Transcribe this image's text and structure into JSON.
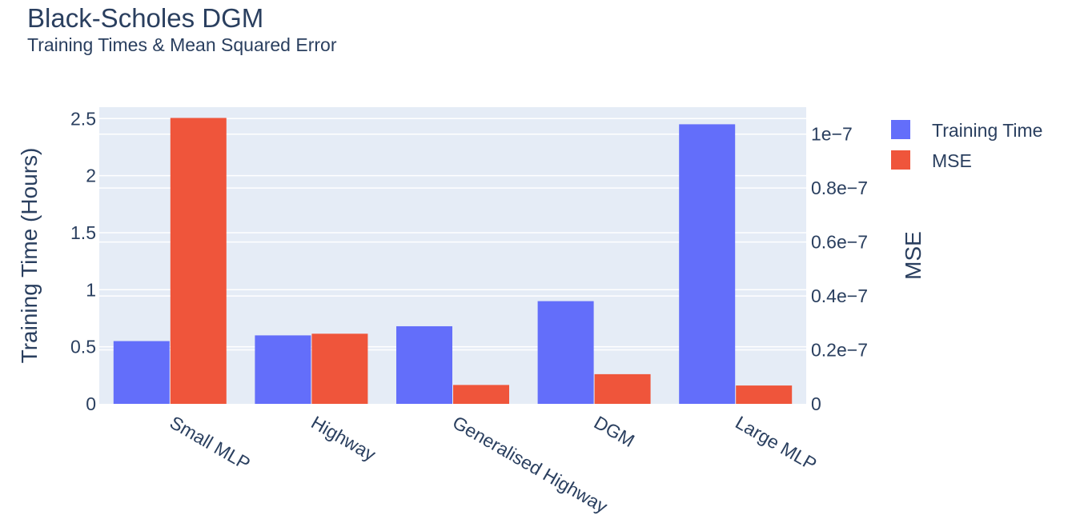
{
  "chart_data": {
    "type": "bar",
    "title": "Black-Scholes DGM",
    "subtitle": "Training Times & Mean Squared Error",
    "categories": [
      "Small MLP",
      "Highway",
      "Generalised Highway",
      "DGM",
      "Large MLP"
    ],
    "series": [
      {
        "name": "Training Time",
        "axis": "left",
        "color": "#636efa",
        "values": [
          0.55,
          0.6,
          0.68,
          0.9,
          2.45
        ]
      },
      {
        "name": "MSE",
        "axis": "right",
        "color": "#ef553b",
        "values": [
          1.06e-07,
          2.6e-08,
          7e-09,
          1.1e-08,
          6.8e-09
        ]
      }
    ],
    "y_left": {
      "label": "Training Time (Hours)",
      "range": [
        0,
        2.6
      ],
      "ticks": [
        0,
        0.5,
        1,
        1.5,
        2,
        2.5
      ],
      "tick_labels": [
        "0",
        "0.5",
        "1",
        "1.5",
        "2",
        "2.5"
      ]
    },
    "y_right": {
      "label": "MSE",
      "range": [
        0,
        1.1e-07
      ],
      "ticks": [
        0,
        2e-08,
        4e-08,
        6e-08,
        8e-08,
        1e-07
      ],
      "tick_labels": [
        "0",
        "0.2e−7",
        "0.4e−7",
        "0.6e−7",
        "0.8e−7",
        "1e−7"
      ]
    },
    "grid": true,
    "legend_position": "top-right",
    "plot_background": "#e5ecf6",
    "gridline_color": "#ffffff"
  }
}
